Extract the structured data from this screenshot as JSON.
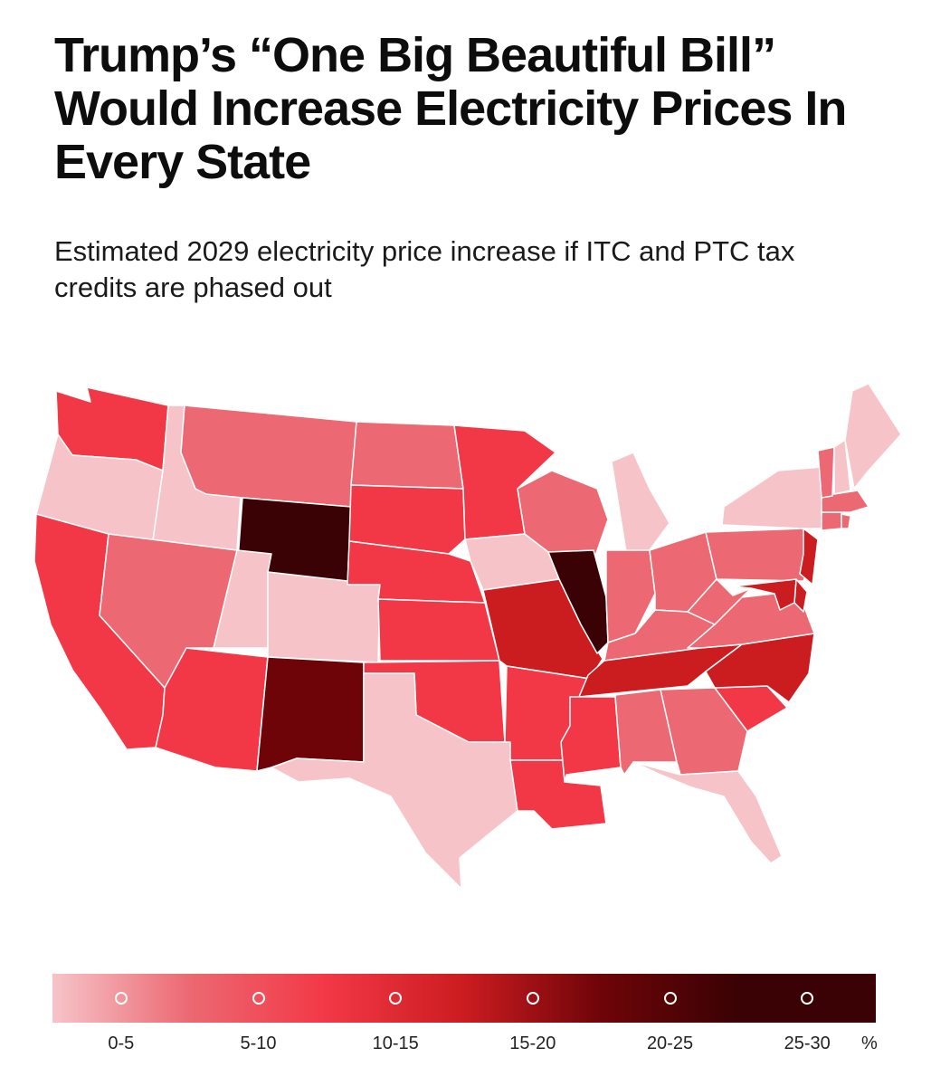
{
  "title": "Trump’s “One Big Beautiful Bill” Would Increase Electricity Prices In Every State",
  "subtitle": "Estimated 2029 electricity price increase if ITC and PTC tax credits are phased out",
  "legend": {
    "bins": [
      {
        "label": "0-5",
        "color": "#f6c4c8"
      },
      {
        "label": "5-10",
        "color": "#ec6872"
      },
      {
        "label": "10-15",
        "color": "#f23846"
      },
      {
        "label": "15-20",
        "color": "#cb1c20"
      },
      {
        "label": "20-25",
        "color": "#6e0408"
      },
      {
        "label": "25-30",
        "color": "#3a0204"
      }
    ],
    "unit": "%"
  },
  "map_data": {
    "type": "choropleth",
    "bins_pct": [
      "0-5",
      "5-10",
      "10-15",
      "15-20",
      "20-25",
      "25-30"
    ],
    "states": [
      {
        "state": "WA",
        "bin": 2
      },
      {
        "state": "OR",
        "bin": 0
      },
      {
        "state": "CA",
        "bin": 2
      },
      {
        "state": "ID",
        "bin": 0
      },
      {
        "state": "NV",
        "bin": 1
      },
      {
        "state": "MT",
        "bin": 1
      },
      {
        "state": "WY",
        "bin": 5
      },
      {
        "state": "UT",
        "bin": 0
      },
      {
        "state": "CO",
        "bin": 0
      },
      {
        "state": "AZ",
        "bin": 2
      },
      {
        "state": "NM",
        "bin": 4
      },
      {
        "state": "ND",
        "bin": 1
      },
      {
        "state": "SD",
        "bin": 2
      },
      {
        "state": "NE",
        "bin": 2
      },
      {
        "state": "KS",
        "bin": 2
      },
      {
        "state": "OK",
        "bin": 2
      },
      {
        "state": "TX",
        "bin": 0
      },
      {
        "state": "MN",
        "bin": 2
      },
      {
        "state": "IA",
        "bin": 0
      },
      {
        "state": "MO",
        "bin": 3
      },
      {
        "state": "AR",
        "bin": 2
      },
      {
        "state": "LA",
        "bin": 2
      },
      {
        "state": "WI",
        "bin": 1
      },
      {
        "state": "IL",
        "bin": 5
      },
      {
        "state": "MI",
        "bin": 0
      },
      {
        "state": "IN",
        "bin": 1
      },
      {
        "state": "OH",
        "bin": 1
      },
      {
        "state": "KY",
        "bin": 1
      },
      {
        "state": "TN",
        "bin": 3
      },
      {
        "state": "MS",
        "bin": 2
      },
      {
        "state": "AL",
        "bin": 1
      },
      {
        "state": "GA",
        "bin": 1
      },
      {
        "state": "FL",
        "bin": 0
      },
      {
        "state": "SC",
        "bin": 2
      },
      {
        "state": "NC",
        "bin": 3
      },
      {
        "state": "VA",
        "bin": 1
      },
      {
        "state": "WV",
        "bin": 1
      },
      {
        "state": "PA",
        "bin": 1
      },
      {
        "state": "NY",
        "bin": 0
      },
      {
        "state": "NJ",
        "bin": 3
      },
      {
        "state": "DE",
        "bin": 3
      },
      {
        "state": "MD",
        "bin": 3
      },
      {
        "state": "CT",
        "bin": 1
      },
      {
        "state": "RI",
        "bin": 1
      },
      {
        "state": "MA",
        "bin": 1
      },
      {
        "state": "VT",
        "bin": 1
      },
      {
        "state": "NH",
        "bin": 0
      },
      {
        "state": "ME",
        "bin": 0
      }
    ]
  }
}
